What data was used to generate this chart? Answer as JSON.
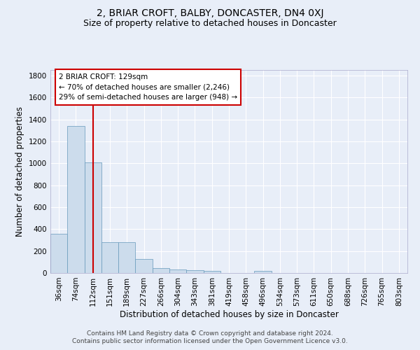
{
  "title": "2, BRIAR CROFT, BALBY, DONCASTER, DN4 0XJ",
  "subtitle": "Size of property relative to detached houses in Doncaster",
  "xlabel": "Distribution of detached houses by size in Doncaster",
  "ylabel": "Number of detached properties",
  "categories": [
    "36sqm",
    "74sqm",
    "112sqm",
    "151sqm",
    "189sqm",
    "227sqm",
    "266sqm",
    "304sqm",
    "343sqm",
    "381sqm",
    "419sqm",
    "458sqm",
    "496sqm",
    "534sqm",
    "573sqm",
    "611sqm",
    "650sqm",
    "688sqm",
    "726sqm",
    "765sqm",
    "803sqm"
  ],
  "values": [
    355,
    1340,
    1010,
    280,
    280,
    130,
    45,
    35,
    25,
    18,
    0,
    0,
    18,
    0,
    0,
    0,
    0,
    0,
    0,
    0,
    0
  ],
  "bar_color": "#ccdcec",
  "bar_edge_color": "#6699bb",
  "bar_width": 1.0,
  "ylim": [
    0,
    1850
  ],
  "yticks": [
    0,
    200,
    400,
    600,
    800,
    1000,
    1200,
    1400,
    1600,
    1800
  ],
  "vline_x": 2,
  "vline_color": "#cc0000",
  "annotation_text": "2 BRIAR CROFT: 129sqm\n← 70% of detached houses are smaller (2,246)\n29% of semi-detached houses are larger (948) →",
  "annotation_box_color": "#ffffff",
  "annotation_box_edge": "#cc0000",
  "footer_line1": "Contains HM Land Registry data © Crown copyright and database right 2024.",
  "footer_line2": "Contains public sector information licensed under the Open Government Licence v3.0.",
  "bg_color": "#e8eef8",
  "plot_bg_color": "#e8eef8",
  "title_fontsize": 10,
  "subtitle_fontsize": 9,
  "label_fontsize": 8.5,
  "tick_fontsize": 7.5,
  "annotation_fontsize": 7.5,
  "footer_fontsize": 6.5
}
